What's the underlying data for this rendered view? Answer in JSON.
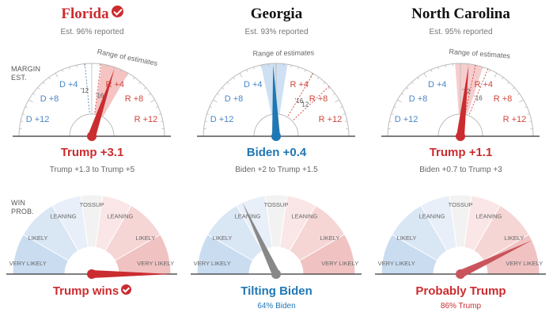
{
  "row_labels": {
    "margin": [
      "MARGIN",
      "EST."
    ],
    "win": [
      "WIN",
      "PROB."
    ]
  },
  "colors": {
    "red": "#cb2c30",
    "blue": "#1f77b4",
    "gray": "#888888"
  },
  "margin_gauge_labels": [
    "D +4",
    "D +8",
    "D +12",
    "R +4",
    "R +8",
    "R +12"
  ],
  "range_label": "Range of estimates",
  "win_gauge_labels": [
    "VERY LIKELY",
    "LIKELY",
    "LEANING",
    "TOSSUP",
    "LEANING",
    "LIKELY",
    "VERY LIKELY"
  ],
  "states": [
    {
      "name": "Florida",
      "called": true,
      "reported": "Est. 96% reported",
      "margin_needle": 3.1,
      "range": [
        1.3,
        5.0
      ],
      "past_2012": -0.9,
      "past_2016": 1.2,
      "needle_color": "#cb2c30",
      "range_color": "#f4b8b8",
      "margin_text": "Trump +3.1",
      "margin_class": "red",
      "range_text": "Trump +1.3 to Trump +5",
      "win_needle_pct_trump": 100,
      "win_color": "#cb2c30",
      "win_text": "Trump wins",
      "win_class": "red",
      "win_check": true,
      "win_sub": ""
    },
    {
      "name": "Georgia",
      "called": false,
      "reported": "Est. 93% reported",
      "margin_needle": -0.4,
      "range": [
        -2.0,
        1.5
      ],
      "past_2012": 7.8,
      "past_2016": 5.1,
      "needle_color": "#1f77b4",
      "range_color": "#c6daf0",
      "margin_text": "Biden +0.4",
      "margin_class": "blue",
      "range_text": "Biden +2 to Trump +1.5",
      "win_needle_pct_trump": 36,
      "win_color": "#888888",
      "win_text": "Tilting Biden",
      "win_class": "blue",
      "win_check": false,
      "win_sub": "64% Biden"
    },
    {
      "name": "North Carolina",
      "called": false,
      "reported": "Est. 95% reported",
      "margin_needle": 1.1,
      "range": [
        -0.7,
        3.0
      ],
      "past_2012": 2.0,
      "past_2016": 3.7,
      "needle_color": "#cb2c30",
      "range_color": "#f4c4c4",
      "margin_text": "Trump +1.1",
      "margin_class": "red",
      "range_text": "Biden +0.7 to Trump +3",
      "win_needle_pct_trump": 86,
      "win_color": "#c9545c",
      "win_text": "Probably Trump",
      "win_class": "red",
      "win_check": false,
      "win_sub": "86% Trump"
    }
  ]
}
